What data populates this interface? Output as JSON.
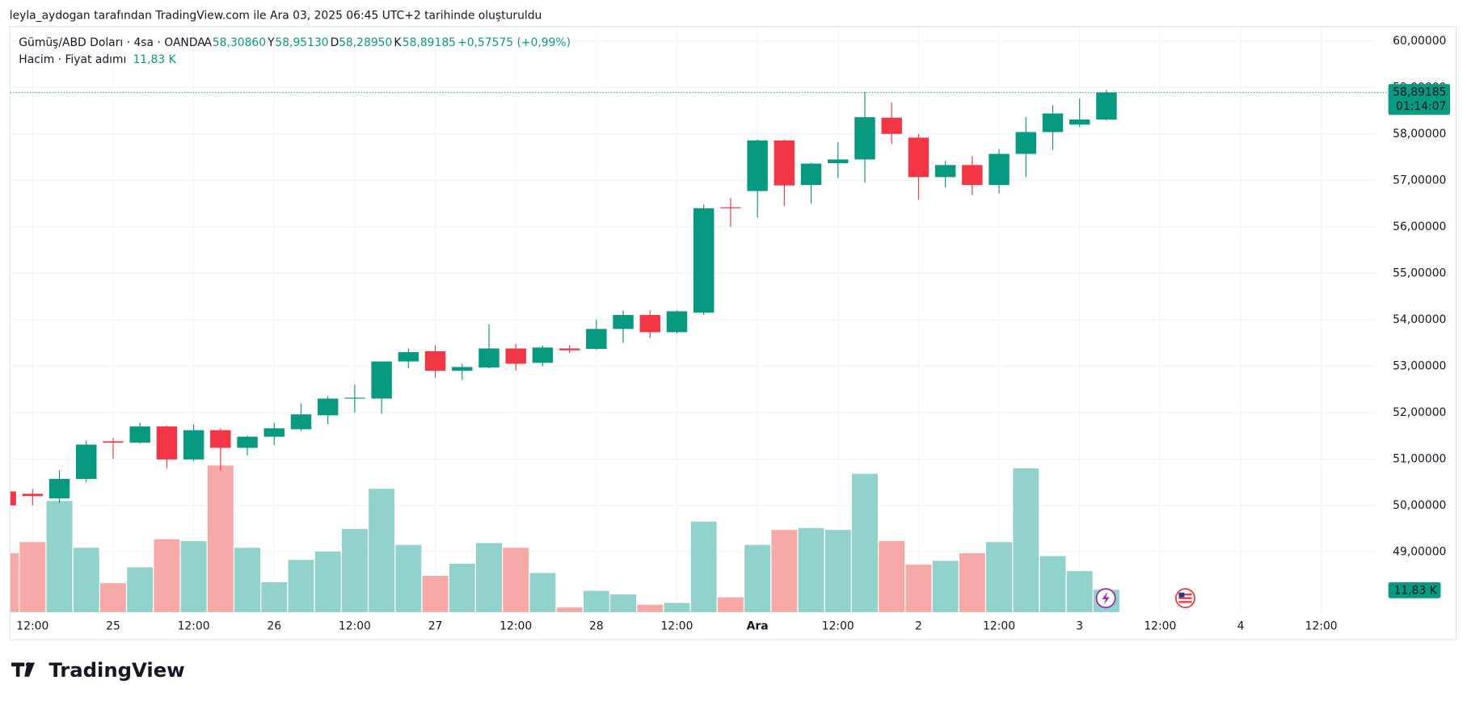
{
  "header": {
    "caption": "leyla_aydogan tarafından TradingView.com ile Ara 03, 2025 06:45 UTC+2 tarihinde oluşturuldu",
    "symbol": "Gümüş/ABD Doları · 4sa · OANDA",
    "ohlc": [
      {
        "key": "A",
        "value": "58,30860"
      },
      {
        "key": "Y",
        "value": "58,95130"
      },
      {
        "key": "D",
        "value": "58,28950"
      },
      {
        "key": "K",
        "value": "58,89185"
      }
    ],
    "change": "+0,57575 (+0,99%)",
    "volume_title": "Hacim · Fiyat adımı"
  },
  "footer": "TradingView",
  "chart_data": {
    "type": "candlestick",
    "open": [
      50.3,
      50.25,
      50.15,
      50.57,
      51.38,
      51.35,
      51.7,
      50.99,
      51.62,
      51.24,
      51.48,
      51.64,
      51.94,
      52.3,
      52.3,
      53.1,
      53.32,
      52.9,
      52.97,
      53.38,
      53.07,
      53.38,
      53.37,
      53.8,
      54.1,
      53.73,
      54.15,
      56.42,
      56.77,
      57.86,
      56.9,
      57.37,
      57.45,
      58.35,
      57.92,
      57.07,
      57.33,
      56.9,
      57.57,
      58.04,
      58.2,
      58.3086
    ],
    "high": [
      50.35,
      50.35,
      50.75,
      51.4,
      51.45,
      51.78,
      51.72,
      51.75,
      51.66,
      51.5,
      51.78,
      52.2,
      52.35,
      52.6,
      53.1,
      53.38,
      53.45,
      53.05,
      53.9,
      53.48,
      53.44,
      53.45,
      54.0,
      54.2,
      54.2,
      54.2,
      56.48,
      56.62,
      57.88,
      57.88,
      57.38,
      57.82,
      58.9,
      58.68,
      58.0,
      57.42,
      57.52,
      57.67,
      58.36,
      58.62,
      58.76,
      58.9513
    ],
    "low": [
      49.95,
      50.0,
      50.05,
      50.5,
      51.0,
      51.33,
      50.8,
      50.95,
      50.75,
      51.08,
      51.3,
      51.6,
      51.75,
      52.0,
      51.97,
      52.95,
      52.75,
      52.7,
      52.95,
      52.9,
      53.0,
      53.28,
      53.35,
      53.5,
      53.6,
      53.7,
      54.1,
      56.0,
      56.2,
      56.45,
      56.5,
      57.05,
      56.95,
      57.78,
      56.58,
      56.85,
      56.68,
      56.72,
      57.07,
      57.66,
      58.15,
      58.2895
    ],
    "close": [
      50.0,
      50.2,
      50.57,
      51.31,
      51.35,
      51.7,
      50.99,
      51.62,
      51.24,
      51.48,
      51.66,
      51.96,
      52.3,
      52.32,
      53.1,
      53.3,
      52.9,
      52.98,
      53.38,
      53.05,
      53.4,
      53.34,
      53.8,
      54.1,
      53.73,
      54.18,
      56.4,
      56.4,
      57.86,
      56.89,
      57.36,
      57.45,
      58.36,
      58.0,
      57.07,
      57.33,
      56.9,
      57.57,
      58.04,
      58.44,
      58.31,
      58.89185
    ],
    "volume": [
      31.1,
      37.0,
      58.7,
      34.0,
      15.3,
      23.7,
      38.5,
      37.5,
      77.4,
      34.0,
      15.8,
      27.6,
      32.0,
      43.9,
      65.1,
      35.5,
      19.2,
      25.6,
      36.5,
      34.0,
      20.7,
      2.5,
      11.3,
      9.4,
      3.9,
      4.9,
      47.8,
      7.9,
      35.5,
      43.4,
      44.4,
      43.4,
      73.0,
      37.5,
      25.1,
      27.1,
      31.1,
      37.0,
      75.9,
      29.6,
      21.7,
      11.83
    ],
    "volume_last_label": "11,83 K",
    "up_color": "#089981",
    "down_color": "#f23645",
    "up_volume_color": "#92d2cc",
    "down_volume_color": "#f7a9a7",
    "ylim": [
      47.7,
      60.3
    ],
    "yticks": [
      {
        "value": 49,
        "label": "49,00000"
      },
      {
        "value": 50,
        "label": "50,00000"
      },
      {
        "value": 51,
        "label": "51,00000"
      },
      {
        "value": 52,
        "label": "52,00000"
      },
      {
        "value": 53,
        "label": "53,00000"
      },
      {
        "value": 54,
        "label": "54,00000"
      },
      {
        "value": 55,
        "label": "55,00000"
      },
      {
        "value": 56,
        "label": "56,00000"
      },
      {
        "value": 57,
        "label": "57,00000"
      },
      {
        "value": 58,
        "label": "58,00000"
      },
      {
        "value": 59,
        "label": "59,00000"
      },
      {
        "value": 60,
        "label": "60,00000"
      }
    ],
    "xtick_labels": [
      "12:00",
      "25",
      "12:00",
      "26",
      "12:00",
      "27",
      "12:00",
      "28",
      "12:00",
      "Ara",
      "12:00",
      "2",
      "12:00",
      "3",
      "12:00",
      "4",
      "12:00"
    ],
    "last_price": {
      "value": 58.89185,
      "label": "58,89185"
    },
    "countdown": "01:14:07",
    "grid": true
  }
}
